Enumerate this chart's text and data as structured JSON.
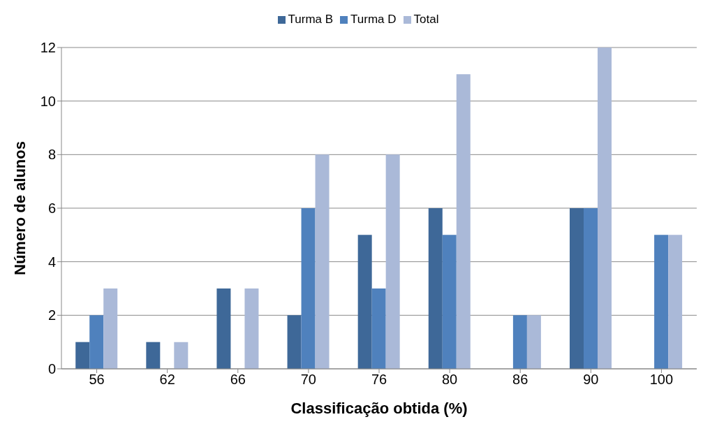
{
  "chart_data": {
    "type": "bar",
    "xlabel": "Classificação obtida (%)",
    "ylabel": "Número de alunos",
    "categories": [
      "56",
      "62",
      "66",
      "70",
      "76",
      "80",
      "86",
      "90",
      "100"
    ],
    "series": [
      {
        "name": "Turma B",
        "color": "#3e6898",
        "values": [
          1,
          1,
          3,
          2,
          5,
          6,
          0,
          6,
          0
        ]
      },
      {
        "name": "Turma D",
        "color": "#4f81bd",
        "values": [
          2,
          0,
          0,
          6,
          3,
          5,
          2,
          6,
          5
        ]
      },
      {
        "name": "Total",
        "color": "#aab9d8",
        "values": [
          3,
          1,
          3,
          8,
          8,
          11,
          2,
          12,
          5
        ]
      }
    ],
    "ylim": [
      0,
      12
    ],
    "yticks": [
      0,
      2,
      4,
      6,
      8,
      10,
      12
    ],
    "grid": "y",
    "legend": "top"
  }
}
